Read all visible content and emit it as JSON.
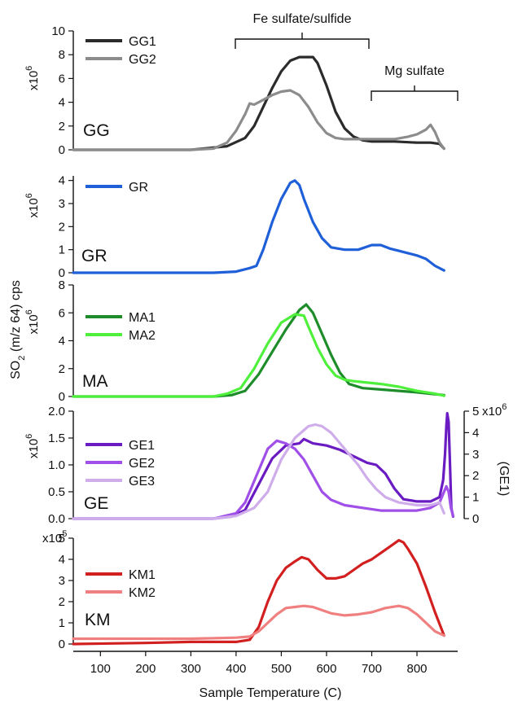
{
  "x_axis": {
    "label": "Sample Temperature (C)",
    "ticks": [
      100,
      200,
      300,
      400,
      500,
      600,
      700,
      800
    ],
    "range": [
      40,
      890
    ]
  },
  "y_axis_shared_label": "SO2 (m/z 64) cps",
  "annotations": [
    {
      "text": "Fe sulfate/sulfide",
      "x_from": 395,
      "x_to": 700
    },
    {
      "text": "Mg sulfate",
      "x_from": 705,
      "x_to": 890
    }
  ],
  "chart_data": [
    {
      "type": "line",
      "panel": "GG",
      "ylim": [
        0,
        10
      ],
      "yticks": [
        0,
        2,
        4,
        6,
        8,
        10
      ],
      "scale_label": "x10^6",
      "series": [
        {
          "name": "GG1",
          "color": "#2b2b2b",
          "x": [
            40,
            300,
            380,
            420,
            440,
            460,
            480,
            500,
            520,
            540,
            560,
            570,
            580,
            600,
            620,
            640,
            660,
            680,
            700,
            750,
            800,
            830,
            850,
            860
          ],
          "y": [
            0,
            0,
            0.3,
            1.0,
            2.0,
            3.6,
            5.2,
            6.6,
            7.5,
            7.8,
            7.8,
            7.8,
            7.3,
            5.4,
            3.2,
            1.8,
            1.1,
            0.8,
            0.7,
            0.7,
            0.6,
            0.6,
            0.5,
            0.1
          ]
        },
        {
          "name": "GG2",
          "color": "#8c8c8c",
          "x": [
            40,
            300,
            350,
            380,
            400,
            420,
            430,
            440,
            460,
            480,
            500,
            520,
            540,
            560,
            580,
            600,
            620,
            640,
            660,
            680,
            700,
            750,
            780,
            800,
            820,
            830,
            840,
            850,
            860
          ],
          "y": [
            0,
            0,
            0.1,
            0.6,
            1.6,
            3.0,
            3.9,
            3.8,
            4.2,
            4.6,
            4.9,
            5.0,
            4.6,
            3.6,
            2.3,
            1.4,
            1.0,
            0.9,
            0.9,
            0.9,
            0.9,
            0.9,
            1.1,
            1.3,
            1.7,
            2.1,
            1.5,
            0.6,
            0.1
          ]
        }
      ]
    },
    {
      "type": "line",
      "panel": "GR",
      "ylim": [
        0,
        4.2
      ],
      "yticks": [
        0,
        1,
        2,
        3,
        4
      ],
      "scale_label": "x10^6",
      "series": [
        {
          "name": "GR",
          "color": "#1f5fd8",
          "x": [
            40,
            350,
            400,
            430,
            445,
            460,
            480,
            500,
            520,
            530,
            540,
            550,
            570,
            590,
            610,
            640,
            670,
            700,
            720,
            740,
            760,
            780,
            800,
            820,
            840,
            860
          ],
          "y": [
            0,
            0,
            0.05,
            0.2,
            0.3,
            1.0,
            2.2,
            3.2,
            3.9,
            4.0,
            3.8,
            3.2,
            2.2,
            1.5,
            1.1,
            1.0,
            1.0,
            1.2,
            1.2,
            1.05,
            0.95,
            0.85,
            0.75,
            0.6,
            0.3,
            0.1
          ]
        }
      ]
    },
    {
      "type": "line",
      "panel": "MA",
      "ylim": [
        0,
        8
      ],
      "yticks": [
        0,
        2,
        4,
        6,
        8
      ],
      "scale_label": "x10^6",
      "series": [
        {
          "name": "MA1",
          "color": "#1e8c2a",
          "x": [
            40,
            350,
            390,
            420,
            450,
            480,
            510,
            540,
            555,
            570,
            590,
            610,
            630,
            650,
            680,
            720,
            760,
            800,
            830,
            860
          ],
          "y": [
            0,
            0,
            0.1,
            0.4,
            1.6,
            3.2,
            4.8,
            6.2,
            6.6,
            6.0,
            4.5,
            3.0,
            1.7,
            0.9,
            0.6,
            0.5,
            0.4,
            0.3,
            0.2,
            0.1
          ]
        },
        {
          "name": "MA2",
          "color": "#4ef03c",
          "x": [
            40,
            350,
            380,
            410,
            440,
            470,
            500,
            530,
            550,
            560,
            580,
            600,
            620,
            640,
            660,
            690,
            720,
            760,
            800,
            840,
            860
          ],
          "y": [
            0,
            0,
            0.2,
            0.6,
            2.0,
            3.8,
            5.3,
            5.9,
            5.8,
            5.0,
            3.5,
            2.3,
            1.5,
            1.2,
            1.1,
            1.0,
            0.9,
            0.7,
            0.4,
            0.2,
            0.05
          ]
        }
      ]
    },
    {
      "type": "line",
      "panel": "GE",
      "ylim": [
        0,
        2.0
      ],
      "yticks": [
        0.0,
        0.5,
        1.0,
        1.5,
        2.0
      ],
      "scale_label": "x10^6",
      "right_axis": {
        "label": "(GE1)",
        "ylim": [
          0,
          5
        ],
        "yticks": [
          0,
          1,
          2,
          3,
          4,
          5
        ],
        "scale_label": "x10^6"
      },
      "series": [
        {
          "name": "GE1",
          "color": "#6a1bc2",
          "axis": "right",
          "x": [
            40,
            350,
            390,
            420,
            450,
            480,
            510,
            540,
            550,
            570,
            600,
            630,
            660,
            690,
            710,
            730,
            750,
            770,
            800,
            830,
            850,
            858,
            862,
            865,
            867,
            870,
            873,
            876,
            880
          ],
          "y": [
            0,
            0,
            0.1,
            0.4,
            1.6,
            2.8,
            3.4,
            3.5,
            3.7,
            3.5,
            3.4,
            3.2,
            2.9,
            2.6,
            2.5,
            2.1,
            1.4,
            0.9,
            0.8,
            0.8,
            1.0,
            1.8,
            3.0,
            4.3,
            4.9,
            4.5,
            2.5,
            0.5,
            0.1
          ]
        },
        {
          "name": "GE2",
          "color": "#a04fe8",
          "x": [
            40,
            350,
            400,
            420,
            450,
            470,
            490,
            510,
            530,
            550,
            570,
            590,
            610,
            640,
            680,
            720,
            760,
            800,
            830,
            850,
            860,
            865,
            870,
            875,
            880
          ],
          "y": [
            0,
            0,
            0.1,
            0.3,
            0.9,
            1.3,
            1.45,
            1.4,
            1.3,
            1.1,
            0.8,
            0.5,
            0.35,
            0.25,
            0.2,
            0.15,
            0.15,
            0.15,
            0.2,
            0.3,
            0.5,
            0.6,
            0.5,
            0.2,
            0.05
          ]
        },
        {
          "name": "GE3",
          "color": "#cfadeb",
          "x": [
            40,
            350,
            400,
            440,
            470,
            500,
            530,
            560,
            575,
            590,
            610,
            630,
            650,
            670,
            690,
            710,
            730,
            760,
            800,
            830,
            850,
            860
          ],
          "y": [
            0,
            0,
            0.05,
            0.2,
            0.5,
            1.1,
            1.5,
            1.72,
            1.75,
            1.72,
            1.6,
            1.4,
            1.2,
            1.0,
            0.75,
            0.55,
            0.4,
            0.3,
            0.25,
            0.25,
            0.3,
            0.1
          ]
        }
      ]
    },
    {
      "type": "line",
      "panel": "KM",
      "ylim": [
        0,
        5
      ],
      "yticks": [
        0,
        1,
        2,
        3,
        4,
        5
      ],
      "scale_label": "x10^5",
      "series": [
        {
          "name": "KM1",
          "color": "#d21f1f",
          "x": [
            40,
            200,
            300,
            400,
            430,
            450,
            470,
            490,
            510,
            530,
            545,
            560,
            580,
            600,
            620,
            640,
            660,
            680,
            700,
            720,
            740,
            760,
            770,
            780,
            800,
            820,
            840,
            860
          ],
          "y": [
            0.0,
            0.05,
            0.1,
            0.1,
            0.2,
            0.8,
            2.0,
            3.0,
            3.6,
            3.9,
            4.1,
            4.0,
            3.5,
            3.1,
            3.1,
            3.2,
            3.5,
            3.8,
            4.0,
            4.3,
            4.6,
            4.9,
            4.8,
            4.5,
            3.8,
            2.7,
            1.5,
            0.4
          ]
        },
        {
          "name": "KM2",
          "color": "#f08080",
          "x": [
            40,
            200,
            300,
            400,
            430,
            450,
            470,
            490,
            510,
            530,
            550,
            570,
            590,
            610,
            640,
            670,
            700,
            730,
            760,
            780,
            800,
            820,
            840,
            860
          ],
          "y": [
            0.25,
            0.25,
            0.25,
            0.3,
            0.35,
            0.6,
            1.0,
            1.4,
            1.7,
            1.75,
            1.8,
            1.75,
            1.6,
            1.45,
            1.35,
            1.4,
            1.5,
            1.7,
            1.8,
            1.7,
            1.4,
            1.0,
            0.6,
            0.4
          ]
        }
      ]
    }
  ]
}
